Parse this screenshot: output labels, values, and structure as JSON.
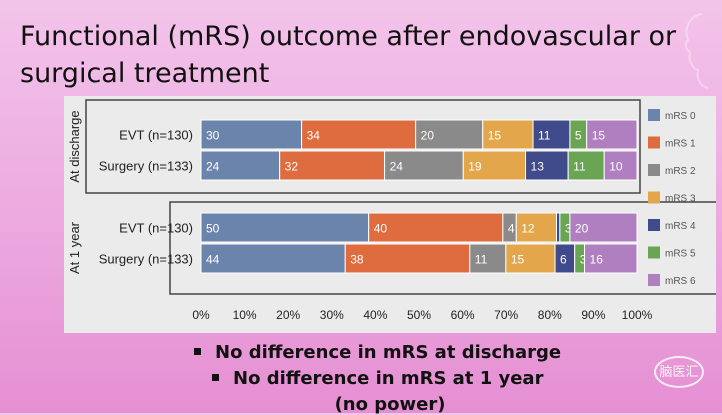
{
  "title": "Functional (mRS) outcome after endovascular or surgical treatment",
  "bullets": [
    "No difference in mRS at discharge",
    "No difference in mRS at 1 year",
    "(no power)"
  ],
  "watermark": "脑医汇",
  "chart_data": {
    "type": "bar",
    "stacked": "horizontal-100%",
    "groups": [
      {
        "label": "At discharge",
        "rows": [
          {
            "label": "EVT (n=130)",
            "values": [
              30,
              34,
              20,
              15,
              11,
              5,
              15
            ]
          },
          {
            "label": "Surgery (n=133)",
            "values": [
              24,
              32,
              24,
              19,
              13,
              11,
              10
            ]
          }
        ]
      },
      {
        "label": "At 1 year",
        "rows": [
          {
            "label": "EVT (n=130)",
            "values": [
              50,
              40,
              4,
              12,
              1,
              3,
              20
            ]
          },
          {
            "label": "Surgery (n=133)",
            "values": [
              44,
              38,
              11,
              15,
              6,
              3,
              16
            ]
          }
        ]
      }
    ],
    "series": [
      {
        "name": "mRS 0",
        "color": "#6b84ac"
      },
      {
        "name": "mRS 1",
        "color": "#de6c3f"
      },
      {
        "name": "mRS 2",
        "color": "#8a8a8a"
      },
      {
        "name": "mRS 3",
        "color": "#e3a64a"
      },
      {
        "name": "mRS 4",
        "color": "#3f4b8a"
      },
      {
        "name": "mRS 5",
        "color": "#6aa553"
      },
      {
        "name": "mRS 6",
        "color": "#b07fc0"
      }
    ],
    "segment_labels": [
      [
        "30",
        "34",
        "20",
        "15",
        "11",
        "5",
        "15"
      ],
      [
        "24",
        "32",
        "24",
        "19",
        "13",
        "11",
        "10"
      ],
      [
        "50",
        "40",
        "4",
        "12",
        "1",
        "3",
        "20"
      ],
      [
        "44",
        "38",
        "11",
        "15",
        "6",
        "3",
        "16"
      ]
    ],
    "xticks": [
      "0%",
      "10%",
      "20%",
      "30%",
      "40%",
      "50%",
      "60%",
      "70%",
      "80%",
      "90%",
      "100%"
    ],
    "xlim": [
      0,
      100
    ],
    "legend_position": "right"
  }
}
